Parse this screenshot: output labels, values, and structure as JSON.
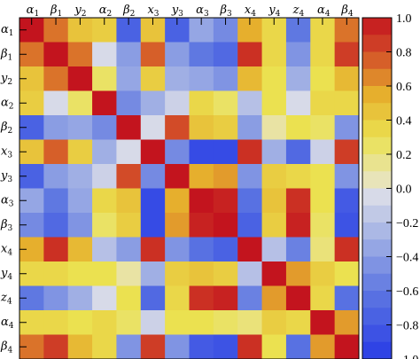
{
  "chart_data": {
    "type": "heatmap",
    "labels": [
      "α1",
      "β1",
      "y2",
      "α2",
      "β2",
      "x3",
      "y3",
      "α3",
      "β3",
      "x4",
      "y4",
      "z4",
      "α4",
      "β4"
    ],
    "colorbar": {
      "ticks": [
        "1.0",
        "0.8",
        "0.6",
        "0.4",
        "0.2",
        "0.0",
        "−0.2",
        "−0.4",
        "−0.6",
        "−0.8",
        "−1.0"
      ],
      "range": [
        -1,
        1
      ]
    },
    "values": [
      [
        1.0,
        0.7,
        0.45,
        0.4,
        -0.75,
        0.45,
        -0.75,
        -0.35,
        -0.5,
        0.55,
        0.35,
        -0.6,
        0.35,
        0.7
      ],
      [
        0.7,
        1.0,
        0.7,
        -0.05,
        -0.4,
        0.75,
        -0.4,
        -0.6,
        -0.7,
        0.9,
        0.35,
        -0.45,
        0.35,
        0.85
      ],
      [
        0.45,
        0.7,
        1.0,
        0.25,
        -0.35,
        0.4,
        -0.3,
        -0.35,
        -0.45,
        0.5,
        0.3,
        -0.3,
        0.3,
        0.5
      ],
      [
        0.4,
        -0.05,
        0.25,
        1.0,
        -0.5,
        -0.3,
        -0.1,
        0.35,
        0.25,
        -0.2,
        0.3,
        -0.05,
        0.35,
        0.35
      ],
      [
        -0.75,
        -0.4,
        -0.35,
        -0.5,
        1.0,
        -0.05,
        0.8,
        0.45,
        0.4,
        -0.4,
        0.1,
        0.3,
        0.25,
        -0.45
      ],
      [
        0.45,
        0.75,
        0.4,
        -0.3,
        -0.05,
        1.0,
        -0.5,
        -0.9,
        -0.9,
        0.9,
        -0.3,
        -0.7,
        -0.1,
        0.85
      ],
      [
        -0.75,
        -0.4,
        -0.3,
        -0.1,
        0.8,
        -0.5,
        1.0,
        0.55,
        0.6,
        -0.45,
        0.4,
        0.35,
        0.3,
        -0.45
      ],
      [
        -0.35,
        -0.6,
        -0.35,
        0.35,
        0.45,
        -0.9,
        0.55,
        1.0,
        0.95,
        -0.65,
        0.45,
        0.9,
        0.3,
        -0.8
      ],
      [
        -0.5,
        -0.7,
        -0.45,
        0.25,
        0.4,
        -0.9,
        0.6,
        0.95,
        1.0,
        -0.75,
        0.4,
        0.95,
        0.25,
        -0.85
      ],
      [
        0.55,
        0.9,
        0.5,
        -0.2,
        -0.4,
        0.9,
        -0.45,
        -0.65,
        -0.75,
        1.0,
        -0.2,
        -0.55,
        0.2,
        0.9
      ],
      [
        0.35,
        0.35,
        0.3,
        0.3,
        0.1,
        -0.3,
        0.4,
        0.45,
        0.4,
        -0.2,
        1.0,
        0.6,
        0.4,
        0.3
      ],
      [
        -0.6,
        -0.45,
        -0.3,
        -0.05,
        0.3,
        -0.7,
        0.35,
        0.9,
        0.95,
        -0.55,
        0.6,
        1.0,
        0.35,
        -0.65
      ],
      [
        0.35,
        0.35,
        0.3,
        0.35,
        0.25,
        -0.1,
        0.3,
        0.3,
        0.25,
        0.2,
        0.4,
        0.35,
        1.0,
        0.6
      ],
      [
        0.7,
        0.85,
        0.5,
        0.35,
        -0.45,
        0.85,
        -0.45,
        -0.8,
        -0.85,
        0.9,
        0.3,
        -0.65,
        0.6,
        1.0
      ]
    ]
  }
}
